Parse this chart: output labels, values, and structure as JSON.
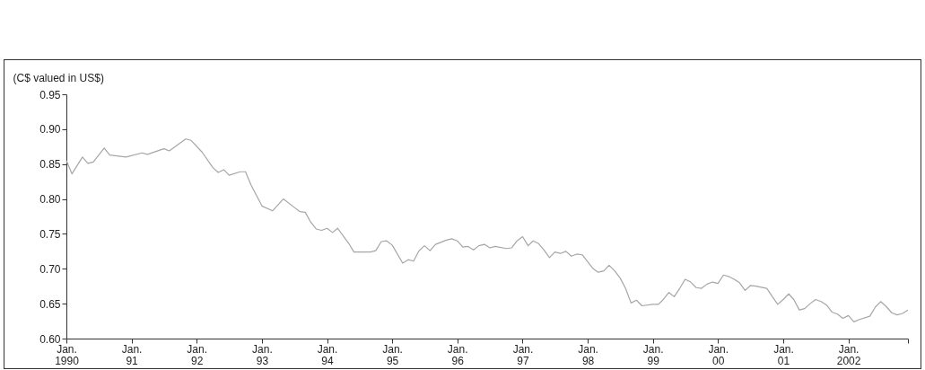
{
  "chart_data": {
    "type": "line",
    "ylabel": "(C$ valued in US$)",
    "x": [
      "1990-01",
      "1990-02",
      "1990-04",
      "1990-05",
      "1990-06",
      "1990-08",
      "1990-09",
      "1990-12",
      "1991-03",
      "1991-04",
      "1991-07",
      "1991-08",
      "1991-11",
      "1991-12",
      "1992-02",
      "1992-04",
      "1992-05",
      "1992-06",
      "1992-07",
      "1992-09",
      "1992-10",
      "1992-11",
      "1993-01",
      "1993-03",
      "1993-05",
      "1993-07",
      "1993-08",
      "1993-09",
      "1993-10",
      "1993-11",
      "1993-12",
      "1994-01",
      "1994-02",
      "1994-03",
      "1994-05",
      "1994-06",
      "1994-07",
      "1994-09",
      "1994-10",
      "1994-11",
      "1994-12",
      "1995-01",
      "1995-03",
      "1995-04",
      "1995-05",
      "1995-06",
      "1995-07",
      "1995-08",
      "1995-09",
      "1995-11",
      "1995-12",
      "1996-01",
      "1996-02",
      "1996-03",
      "1996-04",
      "1996-05",
      "1996-06",
      "1996-07",
      "1996-08",
      "1996-10",
      "1996-11",
      "1996-12",
      "1997-01",
      "1997-02",
      "1997-03",
      "1997-04",
      "1997-05",
      "1997-06",
      "1997-07",
      "1997-08",
      "1997-09",
      "1997-10",
      "1997-11",
      "1997-12",
      "1998-02",
      "1998-03",
      "1998-04",
      "1998-05",
      "1998-06",
      "1998-07",
      "1998-08",
      "1998-09",
      "1998-10",
      "1998-11",
      "1999-01",
      "1999-02",
      "1999-03",
      "1999-04",
      "1999-05",
      "1999-06",
      "1999-07",
      "1999-08",
      "1999-09",
      "1999-10",
      "1999-11",
      "1999-12",
      "2000-01",
      "2000-02",
      "2000-03",
      "2000-04",
      "2000-05",
      "2000-06",
      "2000-07",
      "2000-08",
      "2000-10",
      "2000-11",
      "2000-12",
      "2001-01",
      "2001-02",
      "2001-03",
      "2001-04",
      "2001-05",
      "2001-06",
      "2001-07",
      "2001-08",
      "2001-09",
      "2001-10",
      "2001-11",
      "2001-12",
      "2002-01",
      "2002-02",
      "2002-03",
      "2002-05",
      "2002-06",
      "2002-07",
      "2002-08",
      "2002-09",
      "2002-10",
      "2002-11",
      "2002-12"
    ],
    "series": [
      {
        "color": "#a6a6a6",
        "values": [
          0.855,
          0.836,
          0.86,
          0.851,
          0.853,
          0.873,
          0.863,
          0.86,
          0.866,
          0.864,
          0.872,
          0.869,
          0.886,
          0.884,
          0.867,
          0.845,
          0.838,
          0.842,
          0.834,
          0.839,
          0.839,
          0.82,
          0.79,
          0.783,
          0.8,
          0.788,
          0.782,
          0.781,
          0.767,
          0.757,
          0.755,
          0.758,
          0.752,
          0.758,
          0.737,
          0.724,
          0.724,
          0.724,
          0.726,
          0.739,
          0.74,
          0.734,
          0.708,
          0.713,
          0.711,
          0.726,
          0.733,
          0.726,
          0.735,
          0.741,
          0.743,
          0.74,
          0.731,
          0.732,
          0.727,
          0.733,
          0.735,
          0.73,
          0.732,
          0.729,
          0.73,
          0.74,
          0.746,
          0.733,
          0.74,
          0.736,
          0.727,
          0.716,
          0.724,
          0.722,
          0.725,
          0.718,
          0.721,
          0.72,
          0.7,
          0.695,
          0.697,
          0.705,
          0.697,
          0.687,
          0.672,
          0.651,
          0.655,
          0.647,
          0.649,
          0.649,
          0.656,
          0.666,
          0.66,
          0.672,
          0.685,
          0.681,
          0.673,
          0.672,
          0.678,
          0.681,
          0.679,
          0.691,
          0.689,
          0.685,
          0.68,
          0.669,
          0.676,
          0.675,
          0.672,
          0.66,
          0.649,
          0.656,
          0.664,
          0.656,
          0.641,
          0.643,
          0.65,
          0.656,
          0.653,
          0.648,
          0.638,
          0.635,
          0.629,
          0.633,
          0.624,
          0.627,
          0.632,
          0.645,
          0.653,
          0.646,
          0.637,
          0.634,
          0.636,
          0.641
        ]
      }
    ],
    "xlim": [
      "1990-01",
      "2002-12"
    ],
    "xticks": [
      {
        "value": "1990-01",
        "label": "Jan.\n1990"
      },
      {
        "value": "1991-01",
        "label": "Jan.\n91"
      },
      {
        "value": "1992-01",
        "label": "Jan.\n92"
      },
      {
        "value": "1993-01",
        "label": "Jan.\n93"
      },
      {
        "value": "1994-01",
        "label": "Jan.\n94"
      },
      {
        "value": "1995-01",
        "label": "Jan.\n95"
      },
      {
        "value": "1996-01",
        "label": "Jan.\n96"
      },
      {
        "value": "1997-01",
        "label": "Jan.\n97"
      },
      {
        "value": "1998-01",
        "label": "Jan.\n98"
      },
      {
        "value": "1999-01",
        "label": "Jan.\n99"
      },
      {
        "value": "2000-01",
        "label": "Jan.\n00"
      },
      {
        "value": "2001-01",
        "label": "Jan.\n01"
      },
      {
        "value": "2002-01",
        "label": "Jan.\n2002"
      },
      {
        "value": "2002-12",
        "label": null
      }
    ],
    "ylim": [
      0.6,
      0.95
    ],
    "yticks": [
      {
        "value": 0.6,
        "label": "0.60"
      },
      {
        "value": 0.65,
        "label": "0.65"
      },
      {
        "value": 0.7,
        "label": "0.70"
      },
      {
        "value": 0.75,
        "label": "0.75"
      },
      {
        "value": 0.8,
        "label": "0.80"
      },
      {
        "value": 0.85,
        "label": "0.85"
      },
      {
        "value": 0.9,
        "label": "0.90"
      },
      {
        "value": 0.95,
        "label": "0.95"
      }
    ],
    "grid": false
  }
}
